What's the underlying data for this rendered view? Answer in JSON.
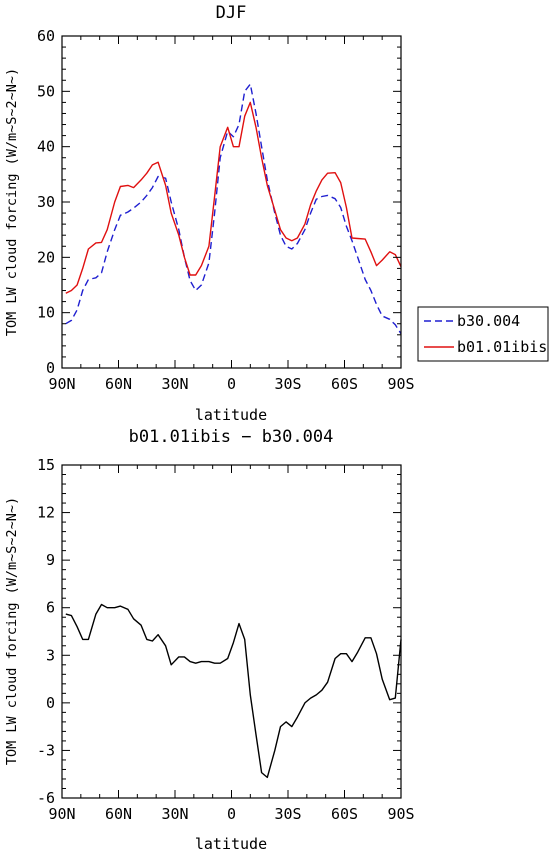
{
  "chart_data": [
    {
      "type": "line",
      "title": "DJF",
      "xlabel": "latitude",
      "ylabel": "TOM LW cloud forcing (W/m~S~2~N~)",
      "xlim": [
        90,
        -90
      ],
      "ylim": [
        0,
        60
      ],
      "x_ticks": [
        90,
        60,
        30,
        0,
        -30,
        -60,
        -90
      ],
      "x_tick_labels": [
        "90N",
        "60N",
        "30N",
        "0",
        "30S",
        "60S",
        "90S"
      ],
      "y_ticks": [
        0,
        10,
        20,
        30,
        40,
        50,
        60
      ],
      "y_tick_labels": [
        "0",
        "10",
        "20",
        "30",
        "40",
        "50",
        "60"
      ],
      "legend_position": "right",
      "series": [
        {
          "name": "b30.004",
          "color": "#1f1fd0",
          "dash": "dashed",
          "x": [
            88,
            85,
            82,
            79,
            76,
            72,
            69,
            66,
            62,
            59,
            55,
            52,
            48,
            45,
            42,
            39,
            35,
            32,
            28,
            25,
            22,
            19,
            16,
            12,
            9,
            6,
            2,
            -1,
            -4,
            -7,
            -10,
            -13,
            -16,
            -19,
            -23,
            -26,
            -29,
            -32,
            -35,
            -39,
            -42,
            -45,
            -48,
            -51,
            -55,
            -58,
            -61,
            -64,
            -67,
            -71,
            -74,
            -77,
            -80,
            -84,
            -87,
            -90
          ],
          "y": [
            8.0,
            8.6,
            10.5,
            14.0,
            16.0,
            16.3,
            17.2,
            21.0,
            25.0,
            27.6,
            28.2,
            28.9,
            30.0,
            31.2,
            32.6,
            34.6,
            34.3,
            30.0,
            25.0,
            20.0,
            15.8,
            14.0,
            15.0,
            19.0,
            28.0,
            38.0,
            42.8,
            41.8,
            44.0,
            50.0,
            51.3,
            46.0,
            40.0,
            34.0,
            28.0,
            24.0,
            22.0,
            21.5,
            22.5,
            25.0,
            28.0,
            30.5,
            31.0,
            31.2,
            30.6,
            29.0,
            25.6,
            23.0,
            20.0,
            16.0,
            14.0,
            11.5,
            9.4,
            8.8,
            7.8,
            6.2
          ]
        },
        {
          "name": "b01.01ibis",
          "color": "#e01010",
          "dash": "solid",
          "x": [
            88,
            85,
            82,
            79,
            76,
            72,
            69,
            66,
            62,
            59,
            55,
            52,
            48,
            45,
            42,
            39,
            35,
            32,
            28,
            25,
            22,
            19,
            16,
            12,
            9,
            6,
            2,
            -1,
            -4,
            -7,
            -10,
            -13,
            -16,
            -19,
            -23,
            -26,
            -29,
            -32,
            -35,
            -39,
            -42,
            -45,
            -48,
            -51,
            -55,
            -58,
            -61,
            -64,
            -67,
            -71,
            -74,
            -77,
            -80,
            -84,
            -87,
            -90
          ],
          "y": [
            13.5,
            14.0,
            15.0,
            18.0,
            21.5,
            22.6,
            22.7,
            25.0,
            30.0,
            32.8,
            33.0,
            32.6,
            34.0,
            35.2,
            36.7,
            37.2,
            33.0,
            28.0,
            24.0,
            20.0,
            16.8,
            16.8,
            18.5,
            22.0,
            31.0,
            40.0,
            43.5,
            40.0,
            40.0,
            45.5,
            48.0,
            43.5,
            38.0,
            33.0,
            28.5,
            25.0,
            23.5,
            23.0,
            23.5,
            26.0,
            29.5,
            32.0,
            34.0,
            35.2,
            35.3,
            33.5,
            29.0,
            23.5,
            23.4,
            23.3,
            21.0,
            18.5,
            19.5,
            21.0,
            20.5,
            18.3
          ]
        }
      ]
    },
    {
      "type": "line",
      "title": "b01.01ibis − b30.004",
      "xlabel": "latitude",
      "ylabel": "TOM LW cloud forcing (W/m~S~2~N~)",
      "xlim": [
        90,
        -90
      ],
      "ylim": [
        -6,
        15
      ],
      "x_ticks": [
        90,
        60,
        30,
        0,
        -30,
        -60,
        -90
      ],
      "x_tick_labels": [
        "90N",
        "60N",
        "30N",
        "0",
        "30S",
        "60S",
        "90S"
      ],
      "y_ticks": [
        -6,
        -3,
        0,
        3,
        6,
        9,
        12,
        15
      ],
      "y_tick_labels": [
        "-6",
        "-3",
        "0",
        "3",
        "6",
        "9",
        "12",
        "15"
      ],
      "series": [
        {
          "color": "#000000",
          "dash": "solid",
          "x": [
            88,
            85,
            82,
            79,
            76,
            72,
            69,
            66,
            62,
            59,
            55,
            52,
            48,
            45,
            42,
            39,
            35,
            32,
            28,
            25,
            22,
            19,
            16,
            12,
            9,
            6,
            2,
            -1,
            -4,
            -7,
            -10,
            -13,
            -16,
            -19,
            -23,
            -26,
            -29,
            -32,
            -35,
            -39,
            -42,
            -45,
            -48,
            -51,
            -55,
            -58,
            -61,
            -64,
            -67,
            -71,
            -74,
            -77,
            -80,
            -84,
            -87,
            -90
          ],
          "y": [
            5.6,
            5.5,
            4.8,
            4.0,
            4.0,
            5.6,
            6.2,
            6.0,
            6.0,
            6.1,
            5.9,
            5.3,
            4.9,
            4.0,
            3.9,
            4.3,
            3.6,
            2.4,
            2.9,
            2.9,
            2.6,
            2.5,
            2.6,
            2.6,
            2.5,
            2.5,
            2.8,
            3.8,
            5.0,
            4.0,
            0.5,
            -2.0,
            -4.4,
            -4.7,
            -3.0,
            -1.5,
            -1.2,
            -1.5,
            -0.9,
            0.0,
            0.3,
            0.5,
            0.8,
            1.3,
            2.8,
            3.1,
            3.1,
            2.6,
            3.2,
            4.1,
            4.1,
            3.1,
            1.5,
            0.2,
            0.3,
            4.0
          ]
        }
      ]
    }
  ],
  "legend": {
    "entries": [
      {
        "label": "b30.004",
        "color": "#1f1fd0",
        "dash": "dashed"
      },
      {
        "label": "b01.01ibis",
        "color": "#e01010",
        "dash": "solid"
      }
    ]
  }
}
